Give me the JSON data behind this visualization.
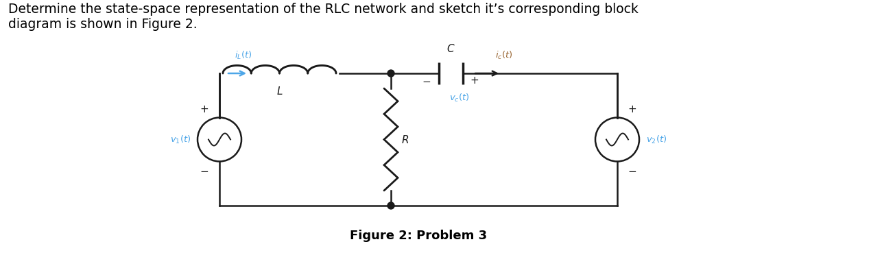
{
  "title_text": "Determine the state-space representation of the RLC network and sketch it’s corresponding block\ndiagram is shown in Figure 2.",
  "caption": "Figure 2: Problem 3",
  "title_fontsize": 13.5,
  "caption_fontsize": 13,
  "text_color": "#000000",
  "blue_color": "#4da6e8",
  "brown_color": "#996633",
  "circuit_color": "#1a1a1a",
  "fig_width": 12.86,
  "fig_height": 3.72,
  "dpi": 100,
  "bg_color": "#ffffff"
}
